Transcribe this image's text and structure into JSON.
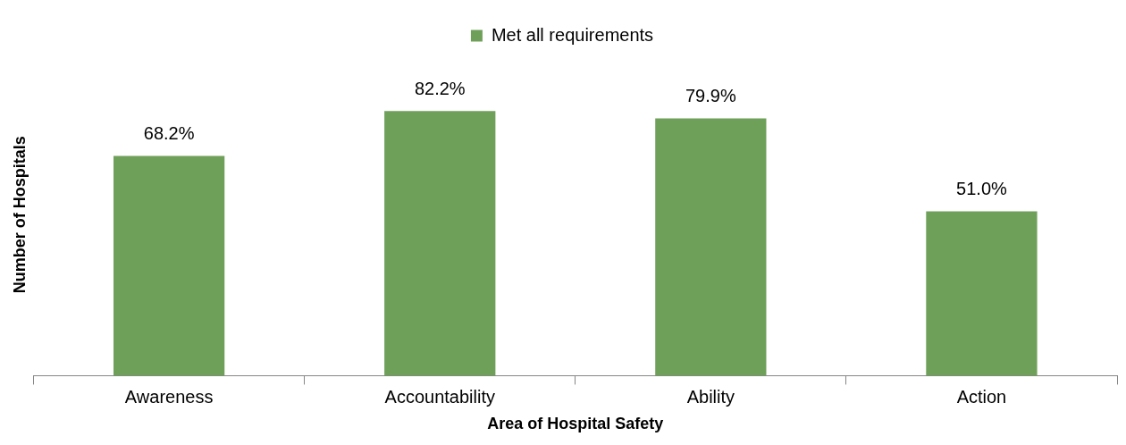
{
  "chart_data": {
    "type": "bar",
    "xlabel": "Area of Hospital Safety",
    "ylabel": "Number of Hospitals",
    "categories": [
      "Awareness",
      "Accountability",
      "Ability",
      "Action"
    ],
    "series": [
      {
        "name": "Met all requirements",
        "color": "#6fa05a",
        "values": [
          68.2,
          82.2,
          79.9,
          51.0
        ],
        "value_labels": [
          "68.2%",
          "82.2%",
          "79.9%",
          "51.0%"
        ]
      }
    ],
    "tick_labels": "x",
    "legend": "top",
    "grid": false
  }
}
